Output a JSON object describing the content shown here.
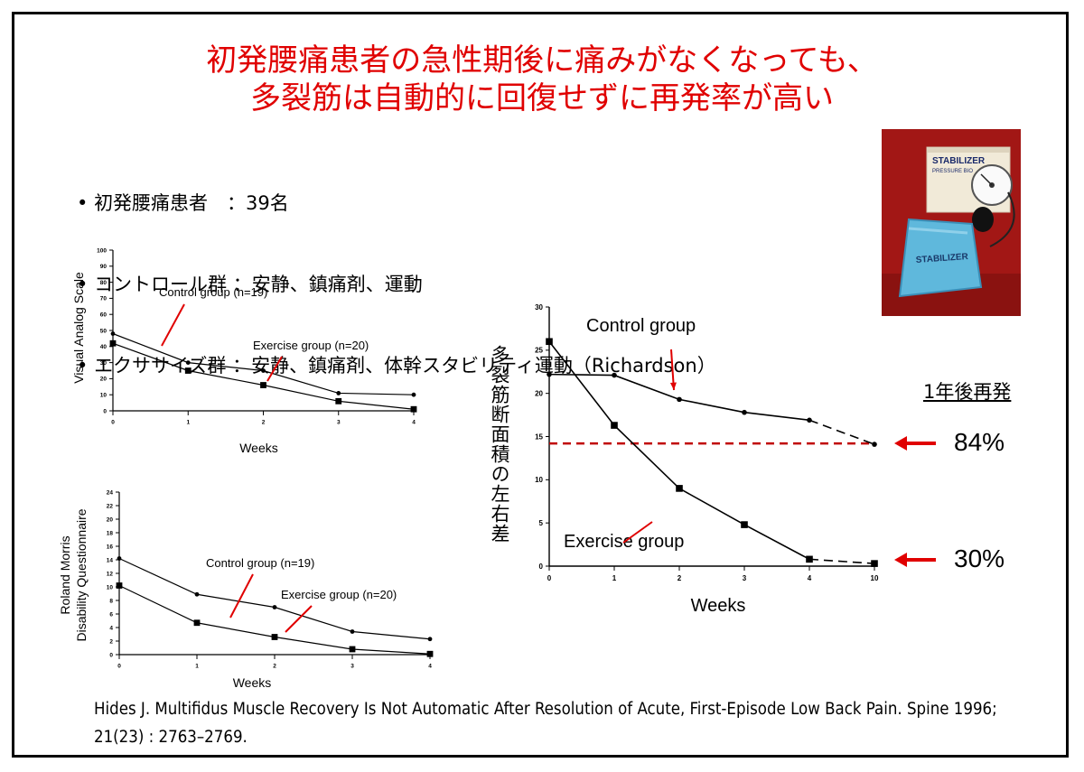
{
  "title": {
    "line1": "初発腰痛患者の急性期後に痛みがなくなっても、",
    "line2": "多裂筋は自動的に回復せずに再発率が高い"
  },
  "bullets": [
    "初発腰痛患者　：39名",
    "コントロール群 ：安静、鎮痛剤、運動",
    "エクササイズ群 ：安静、鎮痛剤、体幹スタビリティ運動（Richardson）"
  ],
  "photo": {
    "box_label": "STABILIZER",
    "box_sub": "PRESSURE BIO",
    "cushion_label": "STABILIZER"
  },
  "colors": {
    "accent": "#e00000",
    "dashed_line": "#c00000"
  },
  "chart_data": [
    {
      "type": "line",
      "ylabel": "Visual Analog Scale",
      "xlabel": "Weeks",
      "categories": [
        "0",
        "1",
        "2",
        "3",
        "4"
      ],
      "yticks": [
        "0",
        "10",
        "20",
        "30",
        "40",
        "50",
        "60",
        "70",
        "80",
        "90",
        "100"
      ],
      "ylim": [
        0,
        100
      ],
      "series": [
        {
          "name": "Control group (n=19)",
          "values": [
            48,
            30,
            25,
            11,
            10
          ]
        },
        {
          "name": "Exercise group (n=20)",
          "values": [
            42,
            25,
            16,
            6,
            1
          ]
        }
      ],
      "annotations": [
        "Control group (n=19)",
        "Exercise group (n=20)"
      ]
    },
    {
      "type": "line",
      "ylabel": "Roland Morris Disability Questionnaire",
      "xlabel": "Weeks",
      "categories": [
        "0",
        "1",
        "2",
        "3",
        "4"
      ],
      "yticks": [
        "0",
        "2",
        "4",
        "6",
        "8",
        "10",
        "12",
        "14",
        "16",
        "18",
        "20",
        "22",
        "24"
      ],
      "ylim": [
        0,
        24
      ],
      "series": [
        {
          "name": "Control group (n=19)",
          "values": [
            14.2,
            8.9,
            7.0,
            3.4,
            2.3
          ]
        },
        {
          "name": "Exercise group (n=20)",
          "values": [
            10.2,
            4.7,
            2.6,
            0.8,
            0.1
          ]
        }
      ],
      "annotations": [
        "Control group (n=19)",
        "Exercise group (n=20)"
      ]
    },
    {
      "type": "line",
      "ylabel": "多裂筋断面積の左右差",
      "xlabel": "Weeks",
      "categories": [
        "0",
        "1",
        "2",
        "3",
        "4",
        "10"
      ],
      "yticks": [
        "0",
        "5",
        "10",
        "15",
        "20",
        "25",
        "30"
      ],
      "ylim": [
        0,
        30
      ],
      "series": [
        {
          "name": "Control group",
          "values": [
            22.2,
            22.1,
            19.3,
            17.8,
            16.9,
            14.1
          ]
        },
        {
          "name": "Exercise group",
          "values": [
            26.0,
            16.3,
            9.0,
            4.8,
            0.8,
            0.3
          ]
        }
      ],
      "reference_line": 14.2,
      "relapse_header": "1年後再発",
      "relapse": {
        "control": "84%",
        "exercise": "30%"
      }
    }
  ],
  "citation": "Hides J. Multifidus Muscle Recovery Is Not Automatic After Resolution of Acute, First-Episode Low Back Pain. Spine 1996; 21(23) : 2763–2769."
}
